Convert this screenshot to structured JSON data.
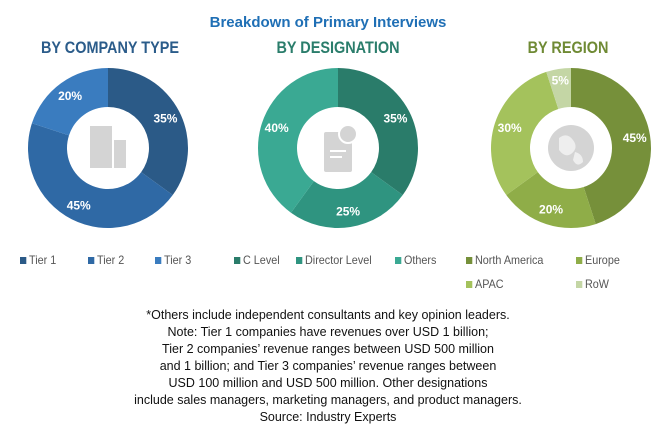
{
  "title": "Breakdown of Primary Interviews",
  "chart_data": [
    {
      "type": "pie",
      "donut": true,
      "title": "BY COMPANY TYPE",
      "title_color": "#2b5c8a",
      "categories": [
        "Tier 1",
        "Tier 2",
        "Tier 3"
      ],
      "values": [
        35,
        45,
        20
      ],
      "labels": [
        "35%",
        "45%",
        "20%"
      ],
      "colors": [
        "#2b5a87",
        "#2f69a5",
        "#3a7cbf"
      ],
      "center_icon": "building-icon",
      "legend": "bottom"
    },
    {
      "type": "pie",
      "donut": true,
      "title": "BY DESIGNATION",
      "title_color": "#2a7d6b",
      "categories": [
        "C Level",
        "Director Level",
        "Others"
      ],
      "values": [
        35,
        25,
        40
      ],
      "labels": [
        "35%",
        "25%",
        "40%"
      ],
      "colors": [
        "#2a7c6a",
        "#2f9480",
        "#3aa993"
      ],
      "center_icon": "document-icon",
      "legend": "bottom"
    },
    {
      "type": "pie",
      "donut": true,
      "title": "BY REGION",
      "title_color": "#6f8a34",
      "categories": [
        "North America",
        "Europe",
        "APAC",
        "RoW"
      ],
      "values": [
        45,
        20,
        30,
        5
      ],
      "labels": [
        "45%",
        "20%",
        "30%",
        "5%"
      ],
      "colors": [
        "#76903a",
        "#8fad48",
        "#a4c25c",
        "#c4d6a5"
      ],
      "center_icon": "globe-icon",
      "legend": "bottom"
    }
  ],
  "notes": [
    "*Others include independent consultants and key opinion leaders.",
    "Note: Tier 1 companies have revenues over USD 1 billion;",
    "Tier 2 companies’ revenue ranges between USD 500 million",
    "and 1 billion; and Tier 3 companies’ revenue ranges between",
    "USD 100 million and USD 500 million. Other designations",
    "include sales managers, marketing managers, and product managers.",
    "Source: Industry Experts"
  ]
}
